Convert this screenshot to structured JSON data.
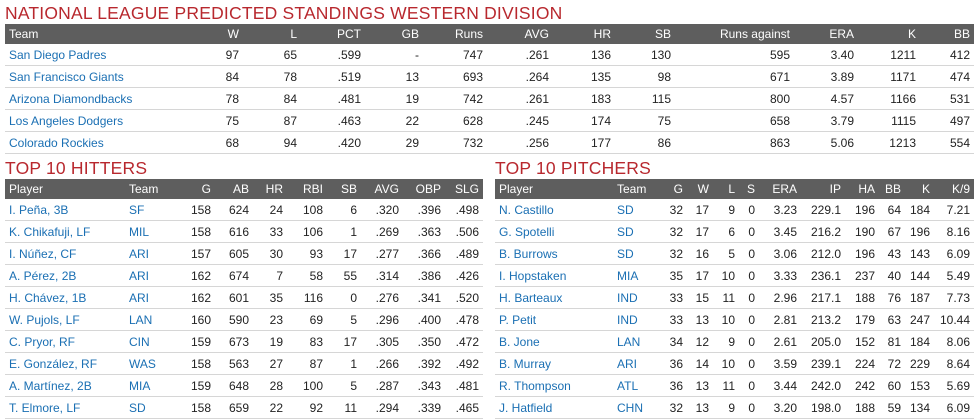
{
  "standings": {
    "title": "NATIONAL LEAGUE PREDICTED STANDINGS WESTERN DIVISION",
    "headers": [
      "Team",
      "W",
      "L",
      "PCT",
      "GB",
      "Runs",
      "AVG",
      "HR",
      "SB",
      "Runs against",
      "ERA",
      "K",
      "BB"
    ],
    "rows": [
      [
        "San Diego Padres",
        "97",
        "65",
        ".599",
        "-",
        "747",
        ".261",
        "136",
        "130",
        "595",
        "3.40",
        "1211",
        "412"
      ],
      [
        "San Francisco Giants",
        "84",
        "78",
        ".519",
        "13",
        "693",
        ".264",
        "135",
        "98",
        "671",
        "3.89",
        "1171",
        "474"
      ],
      [
        "Arizona Diamondbacks",
        "78",
        "84",
        ".481",
        "19",
        "742",
        ".261",
        "183",
        "115",
        "800",
        "4.57",
        "1166",
        "531"
      ],
      [
        "Los Angeles Dodgers",
        "75",
        "87",
        ".463",
        "22",
        "628",
        ".245",
        "174",
        "75",
        "658",
        "3.79",
        "1115",
        "497"
      ],
      [
        "Colorado Rockies",
        "68",
        "94",
        ".420",
        "29",
        "732",
        ".256",
        "177",
        "86",
        "863",
        "5.06",
        "1213",
        "554"
      ]
    ]
  },
  "hitters": {
    "title": "TOP 10 HITTERS",
    "headers": [
      "Player",
      "Team",
      "G",
      "AB",
      "HR",
      "RBI",
      "SB",
      "AVG",
      "OBP",
      "SLG"
    ],
    "rows": [
      [
        "I. Peña, 3B",
        "SF",
        "158",
        "624",
        "24",
        "108",
        "6",
        ".320",
        ".396",
        ".498"
      ],
      [
        "K. Chikafuji, LF",
        "MIL",
        "158",
        "616",
        "33",
        "106",
        "1",
        ".269",
        ".363",
        ".506"
      ],
      [
        "I. Núñez, CF",
        "ARI",
        "157",
        "605",
        "30",
        "93",
        "17",
        ".277",
        ".366",
        ".489"
      ],
      [
        "A. Pérez, 2B",
        "ARI",
        "162",
        "674",
        "7",
        "58",
        "55",
        ".314",
        ".386",
        ".426"
      ],
      [
        "H. Chávez, 1B",
        "ARI",
        "162",
        "601",
        "35",
        "116",
        "0",
        ".276",
        ".341",
        ".520"
      ],
      [
        "W. Pujols, LF",
        "LAN",
        "160",
        "590",
        "23",
        "69",
        "5",
        ".296",
        ".400",
        ".478"
      ],
      [
        "C. Pryor, RF",
        "CIN",
        "159",
        "673",
        "19",
        "83",
        "17",
        ".305",
        ".350",
        ".472"
      ],
      [
        "E. González, RF",
        "WAS",
        "158",
        "563",
        "27",
        "87",
        "1",
        ".266",
        ".392",
        ".492"
      ],
      [
        "A. Martínez, 2B",
        "MIA",
        "159",
        "648",
        "28",
        "100",
        "5",
        ".287",
        ".343",
        ".481"
      ],
      [
        "T. Elmore, LF",
        "SD",
        "158",
        "659",
        "22",
        "92",
        "11",
        ".294",
        ".339",
        ".465"
      ]
    ]
  },
  "pitchers": {
    "title": "TOP 10 PITCHERS",
    "headers": [
      "Player",
      "Team",
      "G",
      "W",
      "L",
      "S",
      "ERA",
      "IP",
      "HA",
      "BB",
      "K",
      "K/9"
    ],
    "rows": [
      [
        "N. Castillo",
        "SD",
        "32",
        "17",
        "9",
        "0",
        "3.23",
        "229.1",
        "196",
        "64",
        "184",
        "7.21"
      ],
      [
        "G. Spotelli",
        "SD",
        "32",
        "17",
        "6",
        "0",
        "3.45",
        "216.2",
        "190",
        "67",
        "196",
        "8.16"
      ],
      [
        "B. Burrows",
        "SD",
        "32",
        "16",
        "5",
        "0",
        "3.06",
        "212.0",
        "196",
        "43",
        "143",
        "6.09"
      ],
      [
        "I. Hopstaken",
        "MIA",
        "35",
        "17",
        "10",
        "0",
        "3.33",
        "236.1",
        "237",
        "40",
        "144",
        "5.49"
      ],
      [
        "H. Barteaux",
        "IND",
        "33",
        "15",
        "11",
        "0",
        "2.96",
        "217.1",
        "188",
        "76",
        "187",
        "7.73"
      ],
      [
        "P. Petit",
        "IND",
        "33",
        "13",
        "10",
        "0",
        "2.81",
        "213.2",
        "179",
        "63",
        "247",
        "10.44"
      ],
      [
        "B. Jone",
        "LAN",
        "34",
        "12",
        "9",
        "0",
        "2.61",
        "205.0",
        "152",
        "81",
        "184",
        "8.06"
      ],
      [
        "B. Murray",
        "ARI",
        "36",
        "14",
        "10",
        "0",
        "3.59",
        "239.1",
        "224",
        "72",
        "229",
        "8.64"
      ],
      [
        "R. Thompson",
        "ATL",
        "36",
        "13",
        "11",
        "0",
        "3.44",
        "242.0",
        "242",
        "60",
        "153",
        "5.69"
      ],
      [
        "J. Hatfield",
        "CHN",
        "32",
        "13",
        "9",
        "0",
        "3.20",
        "198.0",
        "188",
        "59",
        "134",
        "6.09"
      ]
    ]
  }
}
